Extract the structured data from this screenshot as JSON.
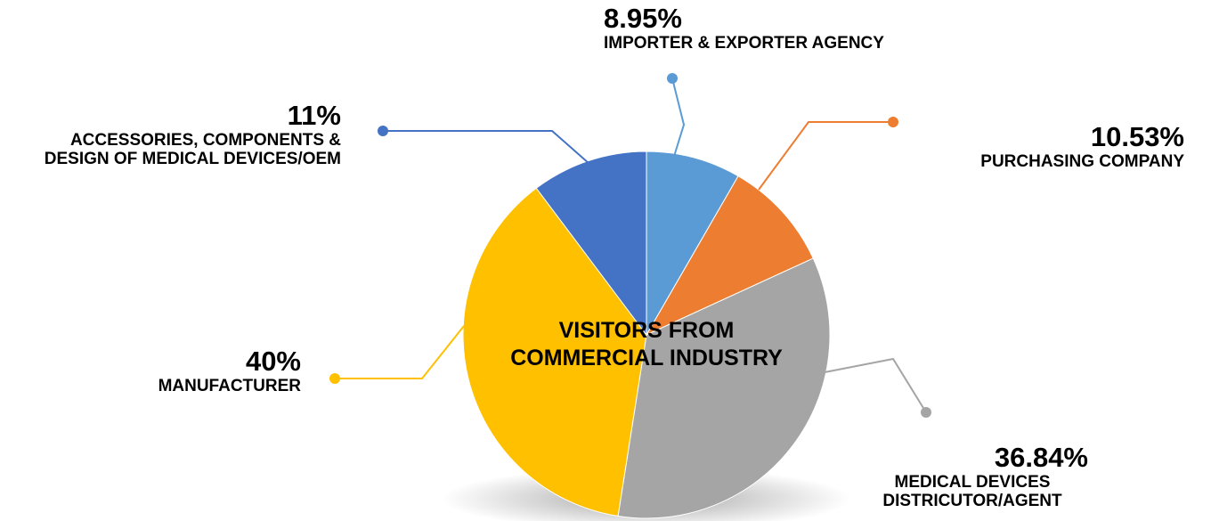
{
  "chart_data": {
    "type": "pie",
    "title": "VISITORS FROM COMMERCIAL INDUSTRY",
    "categories": [
      "IMPORTER & EXPORTER AGENCY",
      "PURCHASING COMPANY",
      "MEDICAL DEVICES DISTRICUTOR/AGENT",
      "MANUFACTURER",
      "ACCESSORIES, COMPONENTS & DESIGN OF MEDICAL DEVICES/OEM"
    ],
    "values": [
      8.95,
      10.53,
      36.84,
      40,
      11
    ],
    "value_labels": [
      "8.95%",
      "10.53%",
      "36.84%",
      "40%",
      "11%"
    ],
    "colors": [
      "#5b9bd5",
      "#ed7d31",
      "#a5a5a5",
      "#ffc000",
      "#4472c4"
    ]
  }
}
